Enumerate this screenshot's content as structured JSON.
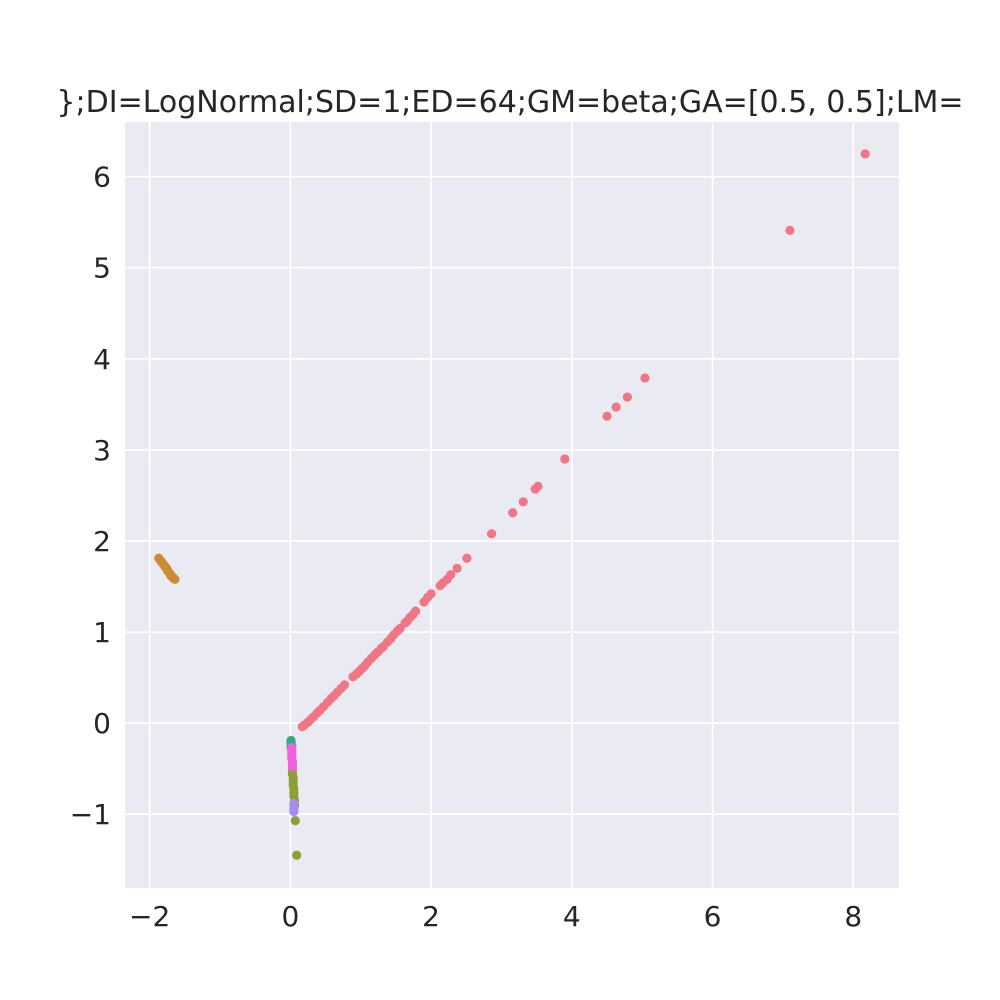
{
  "chart_data": {
    "type": "scatter",
    "title": "};DI=LogNormal;SD=1;ED=64;GM=beta;GA=[0.5, 0.5];LM=",
    "xlabel": "",
    "ylabel": "",
    "xlim": [
      -2.35,
      8.65
    ],
    "ylim": [
      -1.81,
      6.6
    ],
    "grid": true,
    "background": "#eaeaf2",
    "x_ticks": [
      -2,
      0,
      2,
      4,
      6,
      8
    ],
    "x_tick_labels": [
      "−2",
      "0",
      "2",
      "4",
      "6",
      "8"
    ],
    "y_ticks": [
      -1,
      0,
      1,
      2,
      3,
      4,
      5,
      6
    ],
    "y_tick_labels": [
      "−1",
      "0",
      "1",
      "2",
      "3",
      "4",
      "5",
      "6"
    ],
    "series": [
      {
        "color": "#f07585",
        "points": [
          [
            8.17,
            6.25
          ],
          [
            7.1,
            5.41
          ],
          [
            5.04,
            3.79
          ],
          [
            4.79,
            3.58
          ],
          [
            4.63,
            3.47
          ],
          [
            4.5,
            3.37
          ],
          [
            3.9,
            2.9
          ],
          [
            3.52,
            2.6
          ],
          [
            3.48,
            2.57
          ],
          [
            3.31,
            2.43
          ],
          [
            3.16,
            2.31
          ],
          [
            2.86,
            2.08
          ],
          [
            2.51,
            1.81
          ],
          [
            2.37,
            1.7
          ],
          [
            2.28,
            1.63
          ],
          [
            2.23,
            1.58
          ],
          [
            2.17,
            1.54
          ],
          [
            2.13,
            1.51
          ],
          [
            2.0,
            1.42
          ],
          [
            1.95,
            1.38
          ],
          [
            1.9,
            1.33
          ],
          [
            1.78,
            1.23
          ],
          [
            1.74,
            1.19
          ],
          [
            1.7,
            1.16
          ],
          [
            1.66,
            1.12
          ],
          [
            1.63,
            1.1
          ],
          [
            1.56,
            1.04
          ],
          [
            1.52,
            1.01
          ],
          [
            1.47,
            0.97
          ],
          [
            1.43,
            0.93
          ],
          [
            1.38,
            0.89
          ],
          [
            1.32,
            0.84
          ],
          [
            1.29,
            0.82
          ],
          [
            1.24,
            0.78
          ],
          [
            1.2,
            0.75
          ],
          [
            1.15,
            0.71
          ],
          [
            1.1,
            0.67
          ],
          [
            1.06,
            0.63
          ],
          [
            1.02,
            0.6
          ],
          [
            0.98,
            0.57
          ],
          [
            0.94,
            0.54
          ],
          [
            0.89,
            0.51
          ],
          [
            0.77,
            0.42
          ],
          [
            0.72,
            0.38
          ],
          [
            0.67,
            0.34
          ],
          [
            0.62,
            0.3
          ],
          [
            0.58,
            0.27
          ],
          [
            0.53,
            0.23
          ],
          [
            0.47,
            0.18
          ],
          [
            0.42,
            0.14
          ],
          [
            0.38,
            0.11
          ],
          [
            0.33,
            0.07
          ],
          [
            0.29,
            0.04
          ],
          [
            0.25,
            0.01
          ],
          [
            0.2,
            -0.02
          ],
          [
            0.17,
            -0.04
          ]
        ]
      },
      {
        "color": "#cc8b35",
        "points": [
          [
            -1.87,
            1.81
          ],
          [
            -1.84,
            1.78
          ],
          [
            -1.82,
            1.76
          ],
          [
            -1.8,
            1.74
          ],
          [
            -1.78,
            1.72
          ],
          [
            -1.76,
            1.7
          ],
          [
            -1.75,
            1.68
          ],
          [
            -1.73,
            1.66
          ],
          [
            -1.71,
            1.64
          ],
          [
            -1.7,
            1.62
          ],
          [
            -1.68,
            1.61
          ],
          [
            -1.67,
            1.6
          ],
          [
            -1.66,
            1.59
          ],
          [
            -1.64,
            1.58
          ]
        ]
      },
      {
        "color": "#8e9f33",
        "points": [
          [
            0.09,
            -1.45
          ],
          [
            0.07,
            -1.07
          ],
          [
            0.06,
            -0.9
          ],
          [
            0.06,
            -0.85
          ],
          [
            0.05,
            -0.8
          ],
          [
            0.05,
            -0.76
          ],
          [
            0.05,
            -0.72
          ],
          [
            0.04,
            -0.68
          ],
          [
            0.04,
            -0.64
          ],
          [
            0.04,
            -0.6
          ],
          [
            0.03,
            -0.56
          ],
          [
            0.03,
            -0.52
          ]
        ]
      },
      {
        "color": "#36ad7e",
        "points": [
          [
            0.01,
            -0.19
          ],
          [
            0.01,
            -0.21
          ],
          [
            0.01,
            -0.23
          ],
          [
            0.02,
            -0.25
          ]
        ]
      },
      {
        "color": "#38a9c5",
        "points": [
          [
            0.01,
            -0.27
          ],
          [
            0.02,
            -0.29
          ]
        ]
      },
      {
        "color": "#a48cf4",
        "points": [
          [
            0.05,
            -0.97
          ],
          [
            0.05,
            -0.94
          ],
          [
            0.05,
            -0.91
          ],
          [
            0.05,
            -0.88
          ]
        ]
      },
      {
        "color": "#f35fde",
        "points": [
          [
            0.02,
            -0.27
          ],
          [
            0.02,
            -0.3
          ],
          [
            0.02,
            -0.33
          ],
          [
            0.02,
            -0.36
          ],
          [
            0.02,
            -0.39
          ],
          [
            0.03,
            -0.42
          ],
          [
            0.03,
            -0.45
          ],
          [
            0.03,
            -0.48
          ]
        ]
      }
    ]
  }
}
